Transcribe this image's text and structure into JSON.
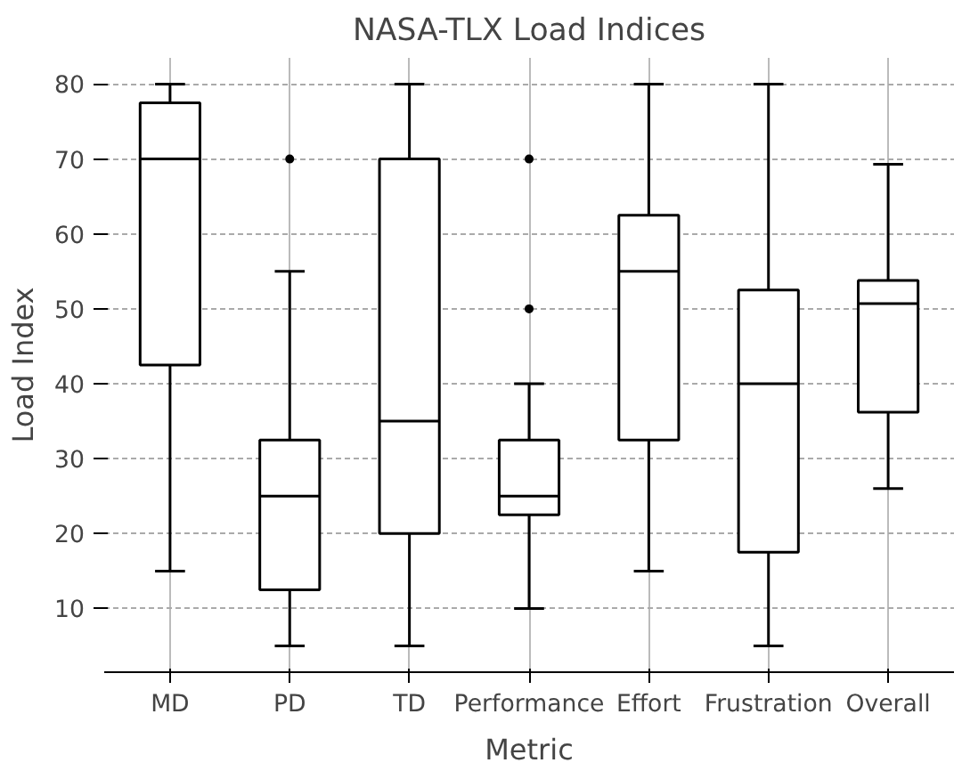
{
  "chart_data": {
    "type": "box",
    "title": "NASA-TLX Load Indices",
    "xlabel": "Metric",
    "ylabel": "Load Index",
    "categories": [
      "MD",
      "PD",
      "TD",
      "Performance",
      "Effort",
      "Frustration",
      "Overall"
    ],
    "boxes": [
      {
        "low": 15,
        "q1": 42.5,
        "median": 70,
        "q3": 77.5,
        "high": 80
      },
      {
        "low": 5,
        "q1": 12.5,
        "median": 25,
        "q3": 32.5,
        "high": 55,
        "outliers": [
          70
        ]
      },
      {
        "low": 5,
        "q1": 20,
        "median": 35,
        "q3": 70,
        "high": 80
      },
      {
        "low": 10,
        "q1": 22.5,
        "median": 25,
        "q3": 32.5,
        "high": 40,
        "outliers": [
          50,
          70
        ]
      },
      {
        "low": 15,
        "q1": 32.5,
        "median": 55,
        "q3": 62.5,
        "high": 80
      },
      {
        "low": 5,
        "q1": 17.5,
        "median": 40,
        "q3": 52.5,
        "high": 80
      },
      {
        "low": 26,
        "q1": 36.2,
        "median": 50.7,
        "q3": 53.8,
        "high": 69.3
      }
    ],
    "color": "#000000",
    "ylim": [
      1.5,
      83.5
    ],
    "yticks": [
      10,
      20,
      30,
      40,
      50,
      60,
      70,
      80
    ],
    "grid": true
  }
}
